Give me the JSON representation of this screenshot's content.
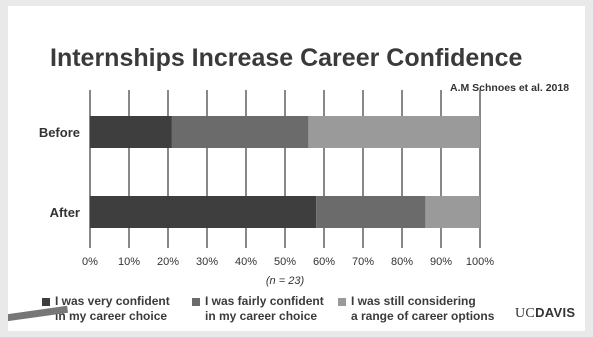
{
  "chart_data": {
    "type": "bar",
    "orientation": "horizontal",
    "stacked": true,
    "title": "Internships Increase Career Confidence",
    "citation": "A.M Schnoes et al. 2018",
    "categories": [
      "Before",
      "After"
    ],
    "series": [
      {
        "name": "I was very confident\nin my career choice",
        "values": [
          21,
          58
        ],
        "color": "#3e3e3e"
      },
      {
        "name": "I was fairly confident\nin my career choice",
        "values": [
          35,
          28
        ],
        "color": "#6b6b6b"
      },
      {
        "name": "I was still considering\na range of career options",
        "values": [
          44,
          14
        ],
        "color": "#9a9a9a"
      }
    ],
    "xticks": [
      "0%",
      "10%",
      "20%",
      "30%",
      "40%",
      "50%",
      "60%",
      "70%",
      "80%",
      "90%",
      "100%"
    ],
    "xlim": [
      0,
      100
    ],
    "xlabel": "(n = 23)",
    "grid": true,
    "legend_position": "bottom"
  },
  "logo": {
    "uc": "UC",
    "davis": "DAVIS"
  }
}
